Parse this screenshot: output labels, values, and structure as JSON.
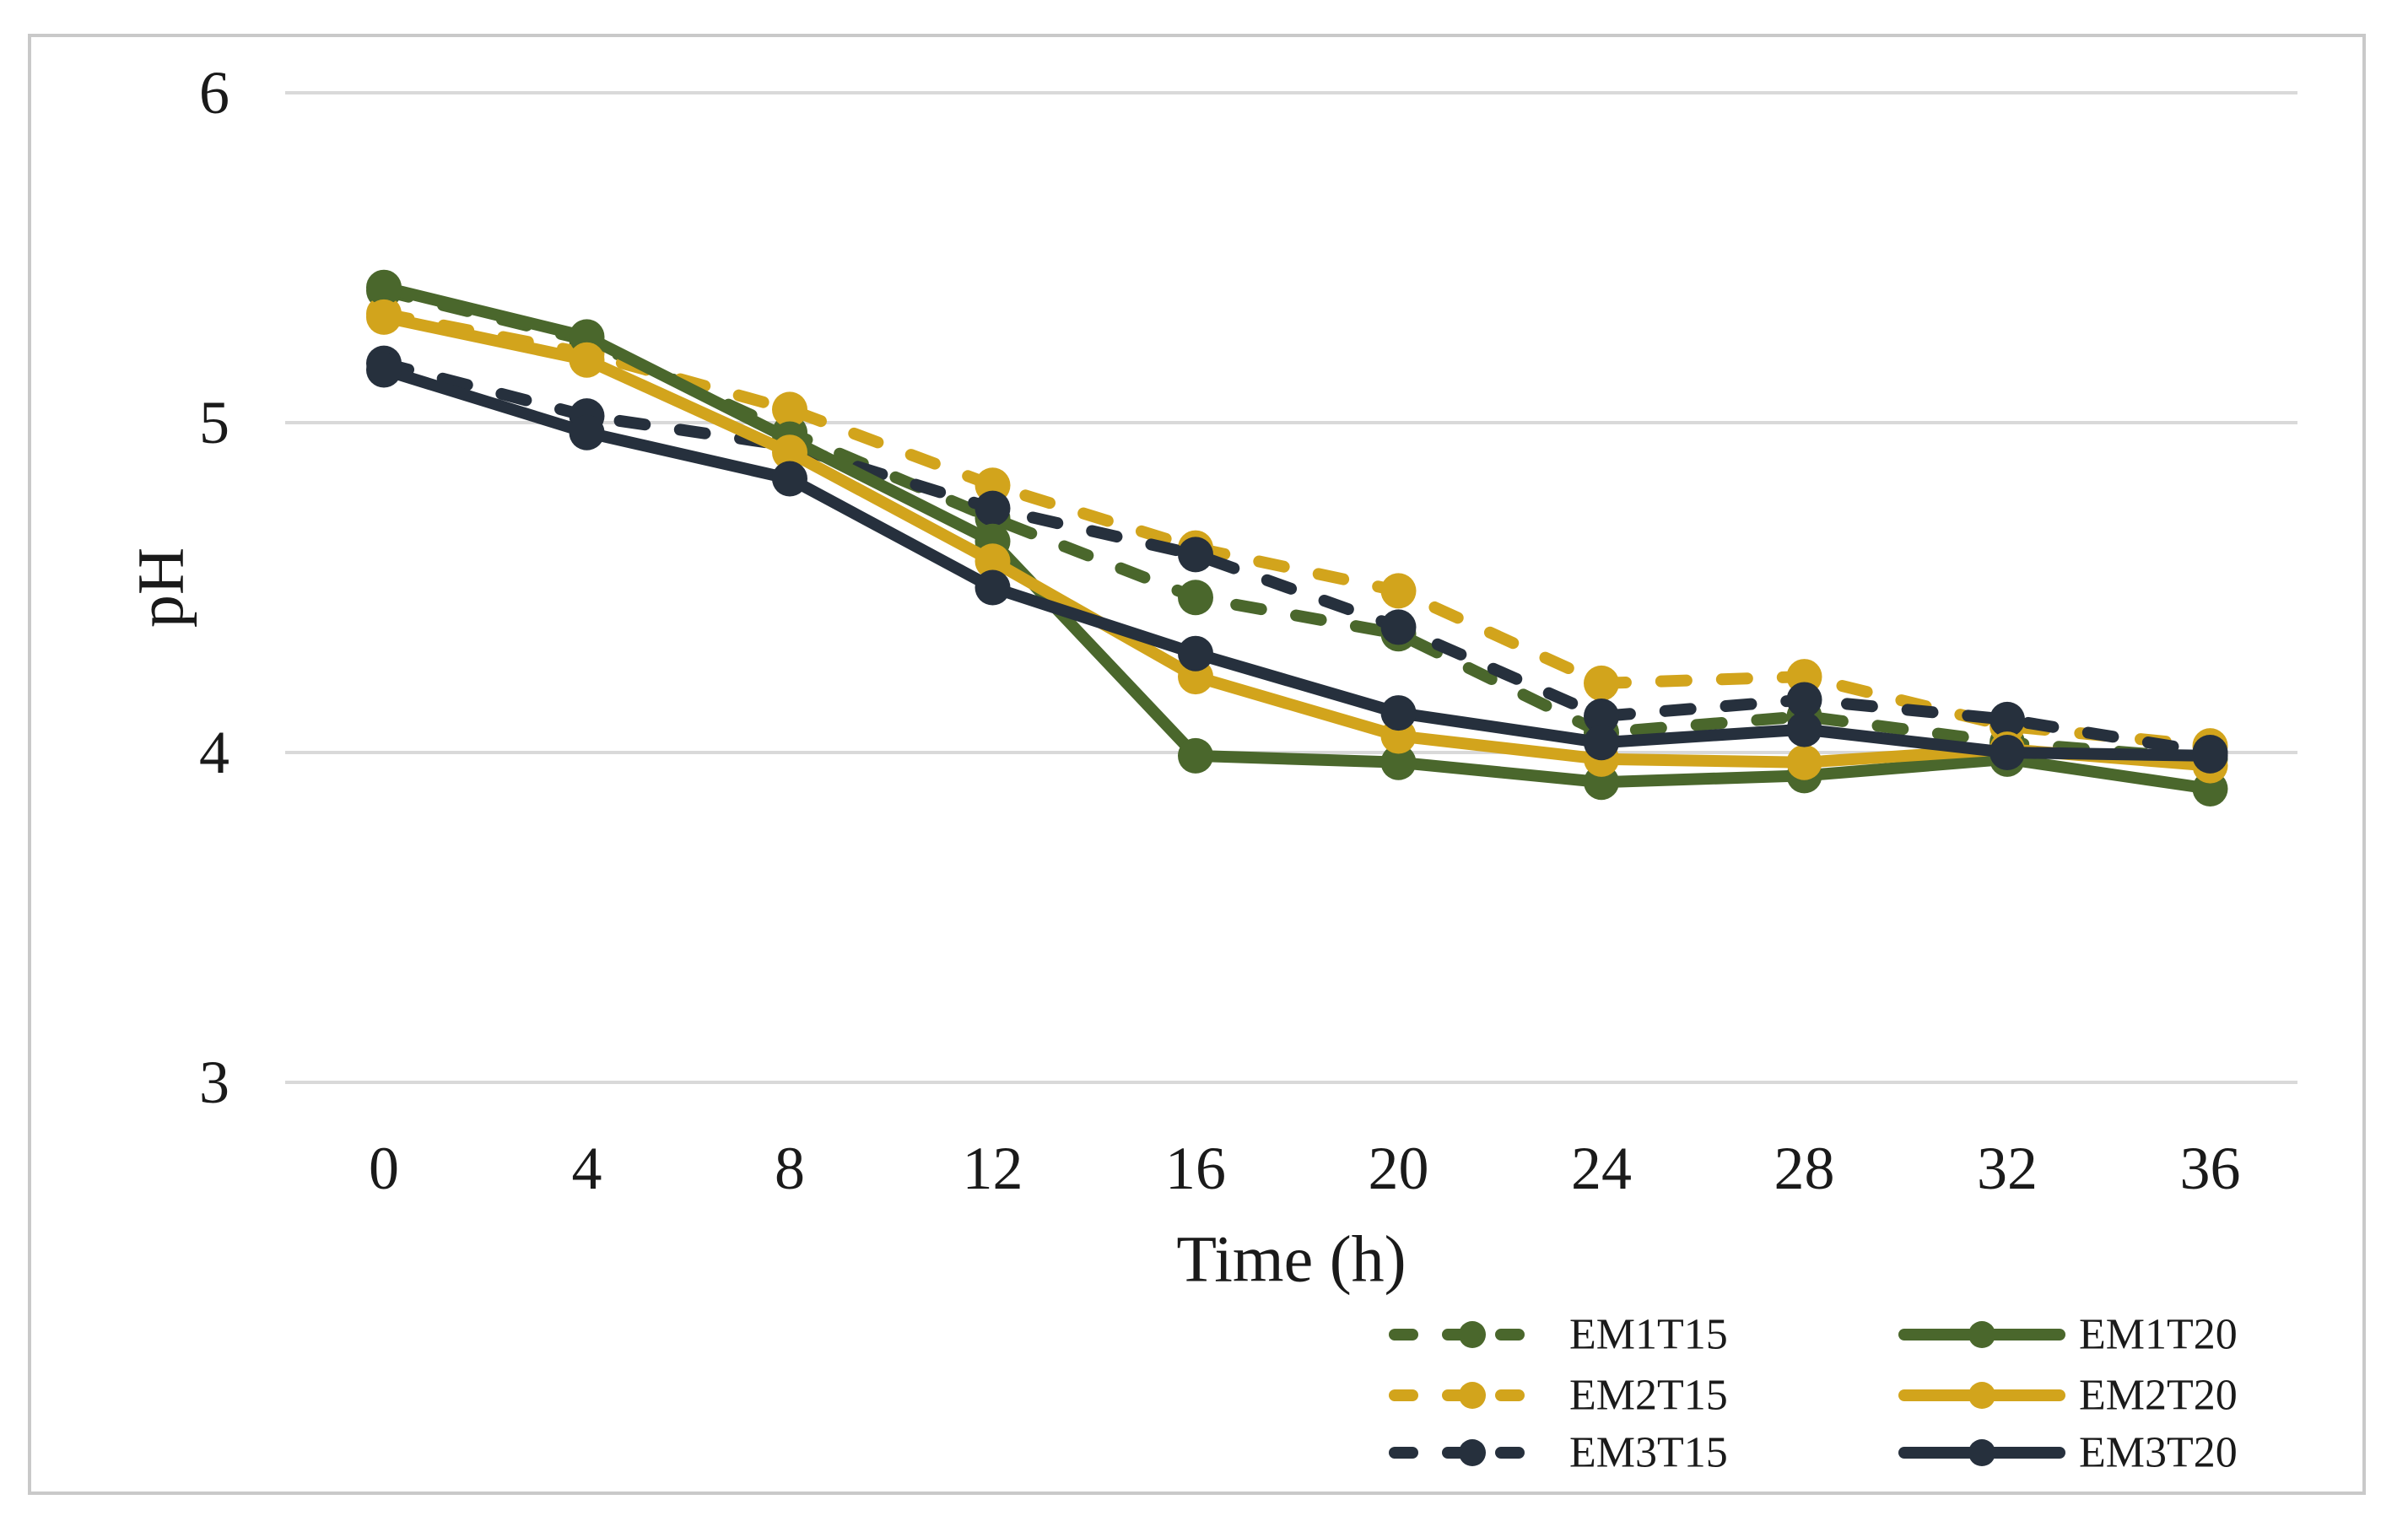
{
  "figure": {
    "background": "#ffffff",
    "border_color": "#c9c9c9",
    "gridline_color": "#d9d9d9",
    "text_color": "#1a1a1a"
  },
  "chart_data": {
    "type": "line",
    "title": "",
    "xlabel": "Time (h)",
    "ylabel": "pH",
    "x": [
      0,
      4,
      8,
      12,
      16,
      20,
      24,
      28,
      32,
      36
    ],
    "xticklabels": [
      "0",
      "4",
      "8",
      "12",
      "16",
      "20",
      "24",
      "28",
      "32",
      "36"
    ],
    "ylim": [
      3,
      6
    ],
    "yticks": [
      6,
      5,
      4,
      3
    ],
    "yticklabels": [
      "6",
      "5",
      "4",
      "3"
    ],
    "grid": "horizontal-only",
    "legend_position": "bottom-right-two-columns",
    "series": [
      {
        "name": "EM1T15",
        "color": "#4a672c",
        "style": "dashed",
        "values": [
          5.4,
          5.25,
          4.97,
          4.71,
          4.47,
          4.36,
          4.06,
          4.11,
          4.03,
          3.98
        ]
      },
      {
        "name": "EM2T15",
        "color": "#d2a41c",
        "style": "dashed",
        "values": [
          5.33,
          5.21,
          5.04,
          4.81,
          4.62,
          4.49,
          4.21,
          4.23,
          4.08,
          4.02
        ]
      },
      {
        "name": "EM3T15",
        "color": "#26303d",
        "style": "dashed",
        "values": [
          5.18,
          5.02,
          4.93,
          4.74,
          4.6,
          4.38,
          4.11,
          4.16,
          4.1,
          4.0
        ]
      },
      {
        "name": "EM1T20",
        "color": "#4a672c",
        "style": "solid",
        "values": [
          5.41,
          5.26,
          4.95,
          4.64,
          3.99,
          3.97,
          3.91,
          3.93,
          3.98,
          3.89
        ]
      },
      {
        "name": "EM2T20",
        "color": "#d2a41c",
        "style": "solid",
        "values": [
          5.32,
          5.19,
          4.91,
          4.58,
          4.23,
          4.05,
          3.98,
          3.97,
          4.01,
          3.96
        ]
      },
      {
        "name": "EM3T20",
        "color": "#26303d",
        "style": "solid",
        "values": [
          5.16,
          4.97,
          4.83,
          4.5,
          4.3,
          4.12,
          4.03,
          4.07,
          4.0,
          3.99
        ]
      }
    ],
    "legend": {
      "columns": [
        [
          "EM1T15",
          "EM2T15",
          "EM3T15"
        ],
        [
          "EM1T20",
          "EM2T20",
          "EM3T20"
        ]
      ]
    }
  }
}
